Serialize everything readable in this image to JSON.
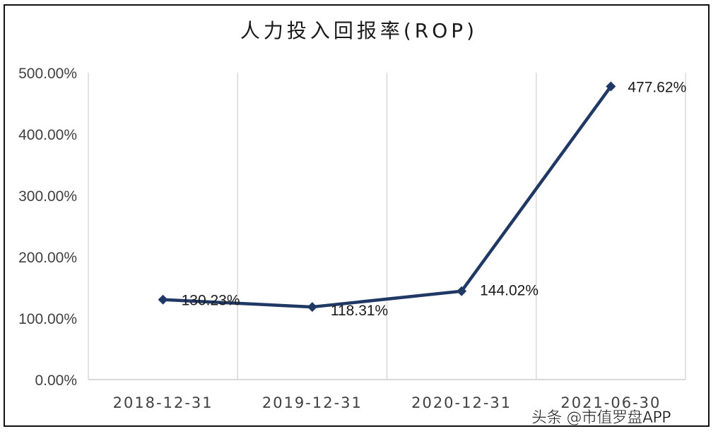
{
  "chart": {
    "title": "人力投入回报率(ROP)",
    "watermark": "头条 @市值罗盘APP",
    "line_color": "#1f3864",
    "grid_color": "#d9d9d9",
    "y_ticks": [
      "0.00%",
      "100.00%",
      "200.00%",
      "300.00%",
      "400.00%",
      "500.00%"
    ],
    "x_ticks": [
      "2018-12-31",
      "2019-12-31",
      "2020-12-31",
      "2021-06-30"
    ],
    "data_labels": [
      "130.23%",
      "118.31%",
      "144.02%",
      "477.62%"
    ]
  },
  "chart_data": {
    "type": "line",
    "title": "人力投入回报率(ROP)",
    "xlabel": "",
    "ylabel": "",
    "categories": [
      "2018-12-31",
      "2019-12-31",
      "2020-12-31",
      "2021-06-30"
    ],
    "series": [
      {
        "name": "人力投入回报率(ROP)",
        "values": [
          130.23,
          118.31,
          144.02,
          477.62
        ],
        "unit": "%"
      }
    ],
    "ylim": [
      0,
      500
    ],
    "y_tick_step": 100,
    "y_tick_format": "0.00%",
    "grid": {
      "vertical": true,
      "horizontal": false
    },
    "legend": "none",
    "marker": "diamond",
    "data_labels": true
  }
}
